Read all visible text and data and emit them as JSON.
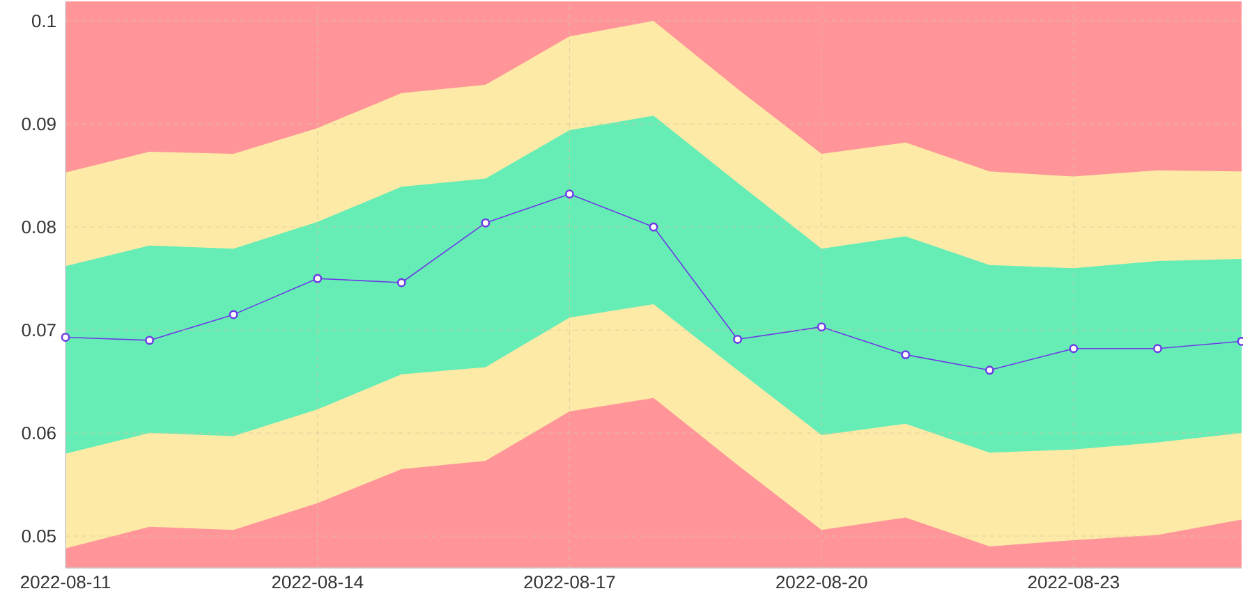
{
  "chart_data": {
    "type": "line",
    "x": [
      "2022-08-11",
      "2022-08-12",
      "2022-08-13",
      "2022-08-14",
      "2022-08-15",
      "2022-08-16",
      "2022-08-17",
      "2022-08-18",
      "2022-08-19",
      "2022-08-20",
      "2022-08-21",
      "2022-08-22",
      "2022-08-23",
      "2022-08-24",
      "2022-08-25"
    ],
    "series": [
      {
        "type": "area",
        "color": "#fdeaa7",
        "values": [
          null,
          null,
          null,
          null,
          null,
          null,
          null,
          null,
          null,
          null,
          null,
          null,
          null,
          null,
          null
        ],
        "lower": [
          0.0488,
          0.0509,
          0.0506,
          0.0532,
          0.0565,
          0.0573,
          0.0621,
          0.0634,
          0.0569,
          0.0506,
          0.0518,
          0.049,
          0.0496,
          0.0501,
          0.0516
        ],
        "upper": [
          0.0853,
          0.0873,
          0.0871,
          0.0896,
          0.093,
          0.0938,
          0.0985,
          0.1,
          0.0934,
          0.0871,
          0.0882,
          0.0854,
          0.0849,
          0.0855,
          0.0854
        ]
      },
      {
        "type": "area",
        "color": "#66edb6",
        "values": [
          null,
          null,
          null,
          null,
          null,
          null,
          null,
          null,
          null,
          null,
          null,
          null,
          null,
          null,
          null
        ],
        "lower": [
          0.058,
          0.06,
          0.0597,
          0.0623,
          0.0657,
          0.0664,
          0.0712,
          0.0725,
          0.0661,
          0.0598,
          0.0609,
          0.0581,
          0.0584,
          0.0591,
          0.06
        ],
        "upper": [
          0.0762,
          0.0782,
          0.0779,
          0.0805,
          0.0839,
          0.0847,
          0.0894,
          0.0908,
          0.0843,
          0.0779,
          0.0791,
          0.0763,
          0.076,
          0.0767,
          0.0769
        ]
      },
      {
        "color": "#6d3be6",
        "marker": "circle",
        "line_style": "solid",
        "values": [
          0.0693,
          0.069,
          0.0715,
          0.075,
          0.0746,
          0.0804,
          0.0832,
          0.08,
          0.0691,
          0.0703,
          0.0676,
          0.0661,
          0.0682,
          0.0682,
          0.0689
        ]
      }
    ],
    "bands": [
      {
        "axis": "y",
        "from": 0.0469,
        "to": 0.1019,
        "color": "#ff9599"
      }
    ],
    "xlim": [
      "2022-08-11",
      "2022-08-25"
    ],
    "xticks": [
      "2022-08-11",
      "2022-08-14",
      "2022-08-17",
      "2022-08-20",
      "2022-08-23"
    ],
    "ylim": [
      0.0469,
      0.1019
    ],
    "yticks": [
      0.05,
      0.06,
      0.07,
      0.08,
      0.09,
      0.1
    ],
    "grid": true
  }
}
